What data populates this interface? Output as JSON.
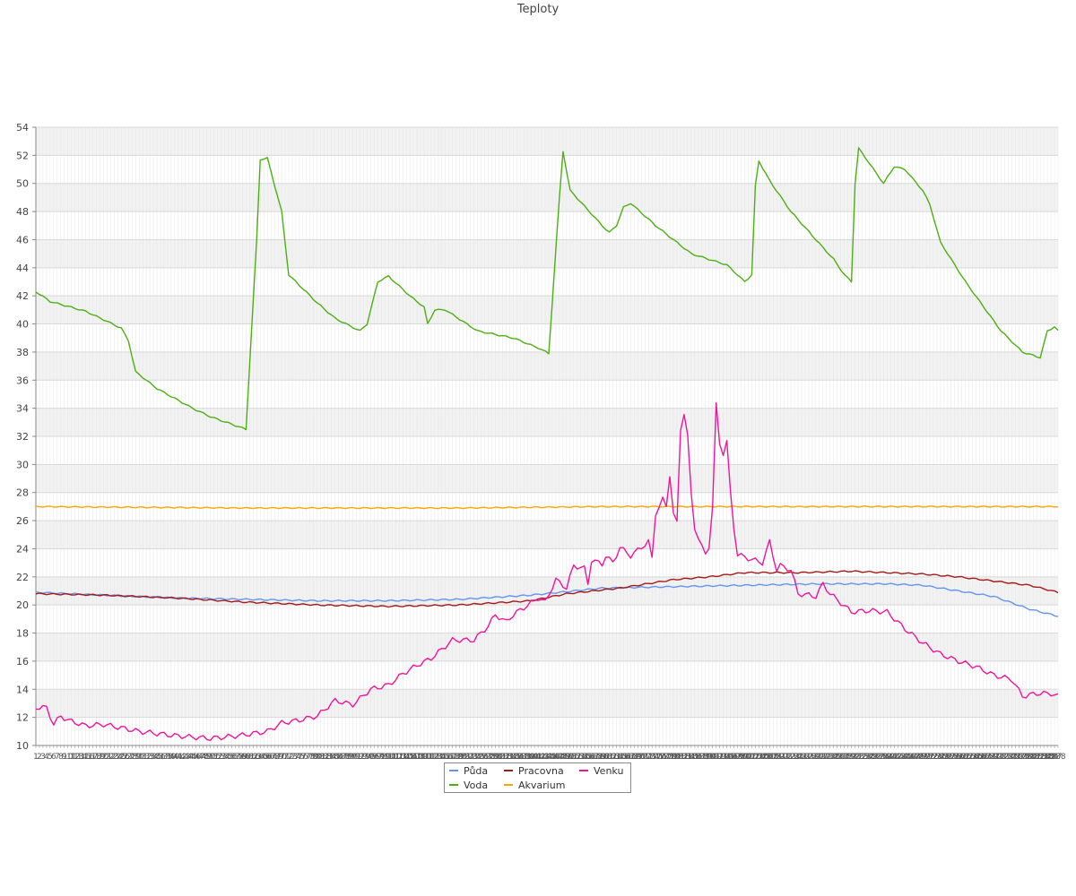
{
  "chart_data": {
    "type": "line",
    "title": "Teploty",
    "xlabel": "",
    "ylabel": "",
    "ylim": [
      10,
      54
    ],
    "ytick_step": 2,
    "grid": true,
    "legend_position": "bottom-center",
    "n_points": 288,
    "x_labels": "1..288 (sample index, densely overlapping)",
    "series": [
      {
        "name": "Půda",
        "color": "#6495ed",
        "anchors": [
          [
            1,
            20.9
          ],
          [
            20,
            20.7
          ],
          [
            40,
            20.5
          ],
          [
            60,
            20.4
          ],
          [
            80,
            20.3
          ],
          [
            100,
            20.3
          ],
          [
            120,
            20.4
          ],
          [
            140,
            20.7
          ],
          [
            152,
            21.0
          ],
          [
            160,
            21.2
          ],
          [
            180,
            21.3
          ],
          [
            200,
            21.4
          ],
          [
            220,
            21.5
          ],
          [
            240,
            21.5
          ],
          [
            250,
            21.4
          ],
          [
            260,
            21.0
          ],
          [
            270,
            20.6
          ],
          [
            280,
            19.7
          ],
          [
            288,
            19.2
          ]
        ]
      },
      {
        "name": "Voda",
        "color": "#4daf14",
        "anchors": [
          [
            1,
            42.3
          ],
          [
            5,
            41.6
          ],
          [
            15,
            40.9
          ],
          [
            25,
            39.7
          ],
          [
            27,
            38.8
          ],
          [
            29,
            36.6
          ],
          [
            35,
            35.4
          ],
          [
            45,
            34.0
          ],
          [
            50,
            33.4
          ],
          [
            60,
            32.5
          ],
          [
            63,
            46.0
          ],
          [
            64,
            51.7
          ],
          [
            66,
            51.8
          ],
          [
            70,
            48.0
          ],
          [
            72,
            43.5
          ],
          [
            80,
            41.5
          ],
          [
            85,
            40.4
          ],
          [
            92,
            39.5
          ],
          [
            94,
            40.0
          ],
          [
            97,
            43.0
          ],
          [
            100,
            43.4
          ],
          [
            106,
            42.0
          ],
          [
            110,
            41.2
          ],
          [
            111,
            40.0
          ],
          [
            113,
            41.0
          ],
          [
            116,
            41.0
          ],
          [
            125,
            39.5
          ],
          [
            135,
            39.0
          ],
          [
            142,
            38.3
          ],
          [
            145,
            37.9
          ],
          [
            148,
            49.0
          ],
          [
            149,
            52.3
          ],
          [
            151,
            49.5
          ],
          [
            160,
            47.0
          ],
          [
            162,
            46.5
          ],
          [
            164,
            47.0
          ],
          [
            166,
            48.3
          ],
          [
            168,
            48.6
          ],
          [
            175,
            47.0
          ],
          [
            180,
            46.0
          ],
          [
            185,
            45.0
          ],
          [
            195,
            44.2
          ],
          [
            198,
            43.5
          ],
          [
            200,
            43.0
          ],
          [
            202,
            43.5
          ],
          [
            203,
            49.8
          ],
          [
            204,
            51.6
          ],
          [
            207,
            50.2
          ],
          [
            213,
            48.0
          ],
          [
            220,
            46.0
          ],
          [
            225,
            44.6
          ],
          [
            228,
            43.5
          ],
          [
            230,
            43.0
          ],
          [
            231,
            50.0
          ],
          [
            232,
            52.5
          ],
          [
            234,
            51.8
          ],
          [
            239,
            50.0
          ],
          [
            242,
            51.2
          ],
          [
            245,
            51.0
          ],
          [
            250,
            49.5
          ],
          [
            252,
            48.5
          ],
          [
            255,
            45.8
          ],
          [
            262,
            43.0
          ],
          [
            272,
            39.5
          ],
          [
            278,
            38.0
          ],
          [
            283,
            37.6
          ],
          [
            285,
            39.5
          ],
          [
            287,
            39.8
          ],
          [
            288,
            39.5
          ]
        ]
      },
      {
        "name": "Pracovna",
        "color": "#a31a1a",
        "anchors": [
          [
            1,
            20.8
          ],
          [
            20,
            20.7
          ],
          [
            40,
            20.5
          ],
          [
            60,
            20.2
          ],
          [
            80,
            20.0
          ],
          [
            100,
            19.9
          ],
          [
            120,
            20.0
          ],
          [
            140,
            20.3
          ],
          [
            150,
            20.8
          ],
          [
            165,
            21.2
          ],
          [
            180,
            21.8
          ],
          [
            190,
            22.0
          ],
          [
            200,
            22.3
          ],
          [
            215,
            22.3
          ],
          [
            230,
            22.4
          ],
          [
            240,
            22.3
          ],
          [
            250,
            22.2
          ],
          [
            260,
            22.0
          ],
          [
            270,
            21.7
          ],
          [
            280,
            21.4
          ],
          [
            288,
            20.9
          ]
        ]
      },
      {
        "name": "Akvarium",
        "color": "#ffa500",
        "anchors": [
          [
            1,
            27.0
          ],
          [
            60,
            26.9
          ],
          [
            120,
            26.9
          ],
          [
            160,
            27.0
          ],
          [
            200,
            27.0
          ],
          [
            250,
            27.0
          ],
          [
            288,
            27.0
          ]
        ]
      },
      {
        "name": "Venku",
        "color": "#f0159b",
        "anchors": [
          [
            1,
            12.7
          ],
          [
            4,
            12.7
          ],
          [
            6,
            11.5
          ],
          [
            8,
            12.1
          ],
          [
            10,
            11.8
          ],
          [
            15,
            11.4
          ],
          [
            20,
            11.5
          ],
          [
            30,
            11.0
          ],
          [
            40,
            10.7
          ],
          [
            50,
            10.5
          ],
          [
            58,
            10.7
          ],
          [
            66,
            11.0
          ],
          [
            70,
            11.6
          ],
          [
            75,
            11.8
          ],
          [
            80,
            12.1
          ],
          [
            85,
            13.2
          ],
          [
            90,
            12.9
          ],
          [
            95,
            14.0
          ],
          [
            100,
            14.3
          ],
          [
            104,
            15.1
          ],
          [
            108,
            15.7
          ],
          [
            112,
            16.2
          ],
          [
            118,
            17.5
          ],
          [
            124,
            17.5
          ],
          [
            128,
            18.5
          ],
          [
            130,
            19.3
          ],
          [
            133,
            18.8
          ],
          [
            135,
            19.3
          ],
          [
            138,
            19.8
          ],
          [
            142,
            20.5
          ],
          [
            144,
            20.2
          ],
          [
            147,
            21.8
          ],
          [
            150,
            21.2
          ],
          [
            152,
            22.8
          ],
          [
            155,
            22.6
          ],
          [
            156,
            21.5
          ],
          [
            157,
            23.2
          ],
          [
            160,
            22.9
          ],
          [
            161,
            23.5
          ],
          [
            163,
            23.0
          ],
          [
            165,
            24.1
          ],
          [
            168,
            23.5
          ],
          [
            173,
            24.5
          ],
          [
            174,
            23.3
          ],
          [
            175,
            26.5
          ],
          [
            177,
            27.5
          ],
          [
            178,
            27.0
          ],
          [
            179,
            29.3
          ],
          [
            180,
            26.5
          ],
          [
            181,
            25.8
          ],
          [
            182,
            32.5
          ],
          [
            183,
            33.7
          ],
          [
            184,
            32.0
          ],
          [
            185,
            27.8
          ],
          [
            186,
            25.5
          ],
          [
            188,
            24.1
          ],
          [
            189,
            23.6
          ],
          [
            190,
            24.2
          ],
          [
            191,
            27.0
          ],
          [
            192,
            34.2
          ],
          [
            193,
            31.5
          ],
          [
            194,
            30.8
          ],
          [
            195,
            31.6
          ],
          [
            196,
            28.0
          ],
          [
            197,
            25.5
          ],
          [
            198,
            23.6
          ],
          [
            200,
            23.4
          ],
          [
            205,
            23.0
          ],
          [
            207,
            24.5
          ],
          [
            209,
            22.5
          ],
          [
            210,
            22.8
          ],
          [
            213,
            22.5
          ],
          [
            215,
            20.8
          ],
          [
            218,
            20.7
          ],
          [
            220,
            20.6
          ],
          [
            222,
            21.5
          ],
          [
            224,
            20.8
          ],
          [
            230,
            19.5
          ],
          [
            235,
            19.6
          ],
          [
            240,
            19.5
          ],
          [
            245,
            18.3
          ],
          [
            250,
            17.3
          ],
          [
            255,
            16.5
          ],
          [
            260,
            16.0
          ],
          [
            265,
            15.6
          ],
          [
            270,
            15.0
          ],
          [
            275,
            14.7
          ],
          [
            278,
            13.5
          ],
          [
            282,
            13.7
          ],
          [
            286,
            13.7
          ],
          [
            288,
            13.5
          ]
        ]
      }
    ]
  }
}
